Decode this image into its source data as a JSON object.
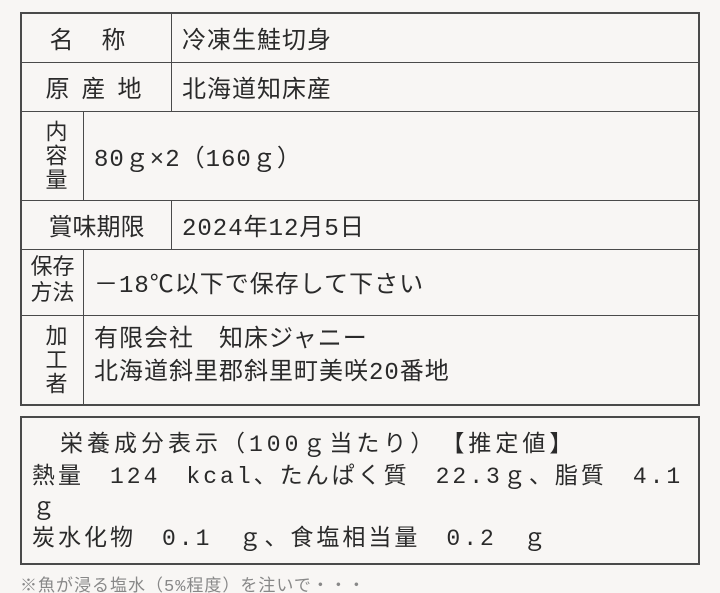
{
  "label": {
    "name_header": "名称",
    "name_value": "冷凍生鮭切身",
    "origin_header": "原産地",
    "origin_value": "北海道知床産",
    "content_header": "内容量",
    "content_value": "80ｇ×2（160ｇ）",
    "expiry_header": "賞味期限",
    "expiry_value": "2024年12月5日",
    "storage_header_l1": "保存",
    "storage_header_l2": "方法",
    "storage_value": "－18℃以下で保存して下さい",
    "processor_header": "加工者",
    "processor_line1": "有限会社　知床ジャニー",
    "processor_line2": "北海道斜里郡斜里町美咲20番地"
  },
  "nutrition": {
    "header": "栄養成分表示（100ｇ当たり）　【推定値】",
    "line1": "熱量　124　kcal、たんぱく質　22.3ｇ、脂質　4.1　ｇ",
    "line2": "炭水化物　0.1　ｇ、食塩相当量　0.2　ｇ"
  },
  "footnote": "※魚が浸る塩水（5%程度）を注いで・・・",
  "colors": {
    "background": "#f8f6f4",
    "border": "#4a4a4a",
    "text": "#2a2a2a",
    "footnote": "#888888"
  },
  "typography": {
    "main_fontsize": 24,
    "nutrition_fontsize": 23,
    "footnote_fontsize": 17,
    "font_family": "MS Gothic / monospace"
  }
}
